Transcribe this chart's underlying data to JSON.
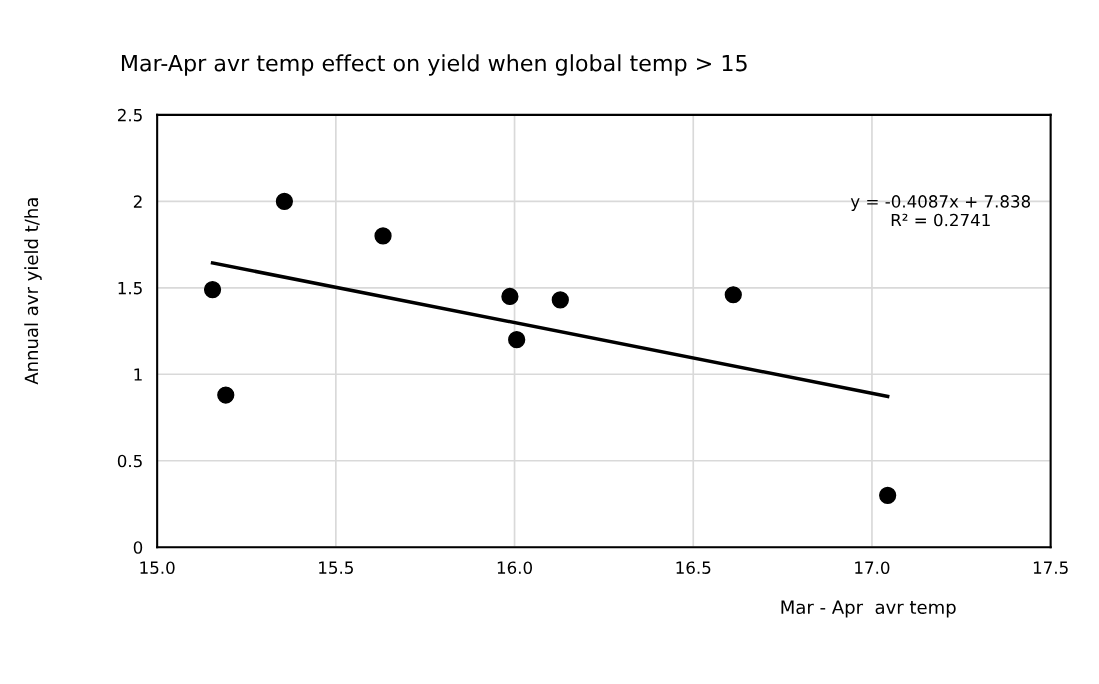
{
  "chart_data": {
    "type": "scatter",
    "title": "Mar-Apr avr temp effect on yield when global temp > 15",
    "xlabel": "Mar - Apr  avr temp",
    "ylabel": "Annual avr yield t/ha",
    "grid": true,
    "legend": false,
    "x": [
      15.155,
      15.192,
      15.356,
      15.632,
      15.987,
      16.006,
      16.128,
      16.612,
      17.044
    ],
    "series": [
      {
        "marker": "circle",
        "color": "#000000",
        "values": [
          1.49,
          0.88,
          2.0,
          1.8,
          1.45,
          1.2,
          1.43,
          1.46,
          0.3
        ]
      },
      {
        "type": "line",
        "marker": "none",
        "color": "#000000",
        "x": [
          15.155,
          17.044
        ],
        "values": [
          1.644,
          0.872
        ]
      }
    ],
    "xlim": [
      15.0,
      17.5
    ],
    "xticks": [
      {
        "value": 15.0,
        "label": "15.0"
      },
      {
        "value": 15.5,
        "label": "15.5"
      },
      {
        "value": 16.0,
        "label": "16.0"
      },
      {
        "value": 16.5,
        "label": "16.5"
      },
      {
        "value": 17.0,
        "label": "17.0"
      },
      {
        "value": 17.5,
        "label": "17.5"
      }
    ],
    "ylim": [
      0,
      2.5
    ],
    "yticks": [
      0,
      0.5,
      1,
      1.5,
      2,
      2.5
    ],
    "annotations": [
      "y = -0.4087x + 7.838\nR² = 0.2741"
    ]
  }
}
